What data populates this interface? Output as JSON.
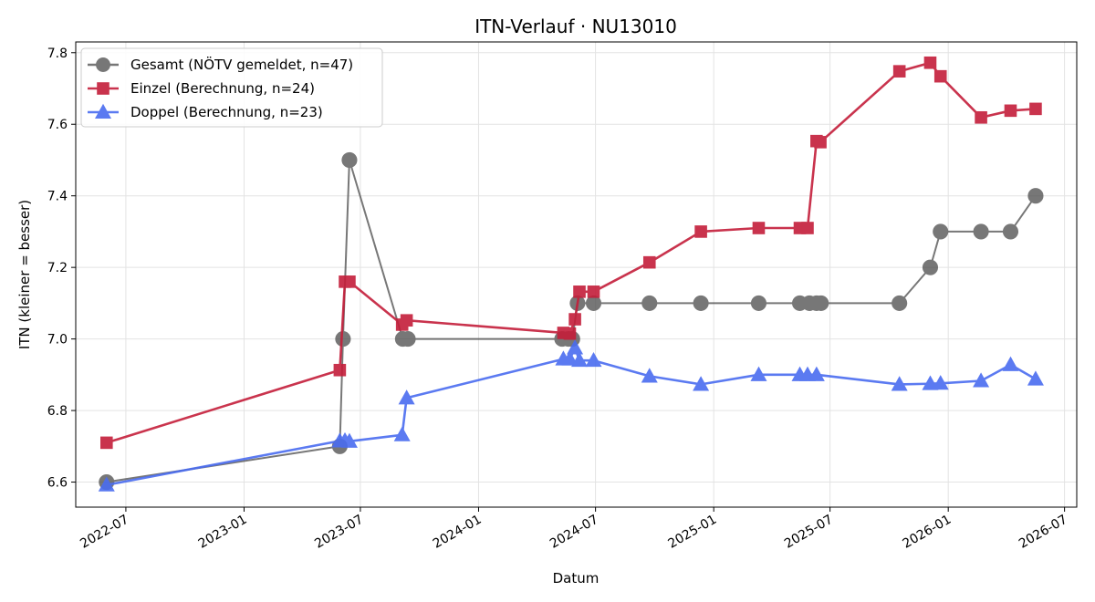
{
  "chart_data": {
    "type": "line",
    "title": "ITN-Verlauf · NU13010",
    "xlabel": "Datum",
    "ylabel": "ITN  (kleiner = besser)",
    "x_type": "date",
    "xlim": [
      "2022-04-14",
      "2026-07-20"
    ],
    "ylim": [
      6.53,
      7.83
    ],
    "x_ticks": [
      "2022-07-01",
      "2023-01-01",
      "2023-07-01",
      "2024-01-01",
      "2024-07-01",
      "2025-01-01",
      "2025-07-01",
      "2026-01-01",
      "2026-07-01"
    ],
    "x_tick_labels": [
      "2022-07",
      "2023-01",
      "2023-07",
      "2024-01",
      "2024-07",
      "2025-01",
      "2025-07",
      "2026-01",
      "2026-07"
    ],
    "y_ticks": [
      6.6,
      6.8,
      7.0,
      7.2,
      7.4,
      7.6,
      7.8
    ],
    "y_tick_labels": [
      "6.6",
      "6.8",
      "7.0",
      "7.2",
      "7.4",
      "7.6",
      "7.8"
    ],
    "grid": true,
    "legend_position": "top-left",
    "series": [
      {
        "name": "Gesamt (NÖTV gemeldet, n=47)",
        "color": "#444444",
        "marker": "circle",
        "points": [
          [
            "2022-06-01",
            6.6
          ],
          [
            "2023-05-30",
            6.7
          ],
          [
            "2023-06-04",
            7.0
          ],
          [
            "2023-06-14",
            7.5
          ],
          [
            "2023-09-05",
            7.0
          ],
          [
            "2023-09-13",
            7.0
          ],
          [
            "2024-05-10",
            7.0
          ],
          [
            "2024-05-20",
            7.0
          ],
          [
            "2024-05-26",
            7.0
          ],
          [
            "2024-06-03",
            7.1
          ],
          [
            "2024-06-28",
            7.1
          ],
          [
            "2024-09-23",
            7.1
          ],
          [
            "2024-12-12",
            7.1
          ],
          [
            "2025-03-12",
            7.1
          ],
          [
            "2025-05-15",
            7.1
          ],
          [
            "2025-05-30",
            7.1
          ],
          [
            "2025-06-10",
            7.1
          ],
          [
            "2025-06-17",
            7.1
          ],
          [
            "2025-10-17",
            7.1
          ],
          [
            "2025-12-04",
            7.2
          ],
          [
            "2025-12-20",
            7.3
          ],
          [
            "2026-02-21",
            7.3
          ],
          [
            "2026-04-08",
            7.3
          ],
          [
            "2026-05-17",
            7.4
          ]
        ]
      },
      {
        "name": "Einzel (Berechnung, n=24)",
        "color": "#c41e3a",
        "marker": "square",
        "points": [
          [
            "2022-06-01",
            6.71
          ],
          [
            "2023-05-30",
            6.913
          ],
          [
            "2023-06-07",
            7.16
          ],
          [
            "2023-06-14",
            7.16
          ],
          [
            "2023-09-04",
            7.04
          ],
          [
            "2023-09-11",
            7.052
          ],
          [
            "2024-05-12",
            7.017
          ],
          [
            "2024-05-22",
            7.015
          ],
          [
            "2024-05-30",
            7.055
          ],
          [
            "2024-06-06",
            7.132
          ],
          [
            "2024-06-28",
            7.132
          ],
          [
            "2024-09-23",
            7.214
          ],
          [
            "2024-12-12",
            7.3
          ],
          [
            "2025-03-12",
            7.31
          ],
          [
            "2025-05-15",
            7.31
          ],
          [
            "2025-05-27",
            7.31
          ],
          [
            "2025-06-10",
            7.553
          ],
          [
            "2025-06-16",
            7.55
          ],
          [
            "2025-10-17",
            7.748
          ],
          [
            "2025-12-04",
            7.772
          ],
          [
            "2025-12-20",
            7.734
          ],
          [
            "2026-02-21",
            7.619
          ],
          [
            "2026-04-08",
            7.638
          ],
          [
            "2026-05-17",
            7.643
          ]
        ]
      },
      {
        "name": "Doppel (Berechnung, n=23)",
        "color": "#4a6cf0",
        "marker": "triangle",
        "points": [
          [
            "2022-06-01",
            6.592
          ],
          [
            "2023-05-30",
            6.715
          ],
          [
            "2023-06-07",
            6.716
          ],
          [
            "2023-06-14",
            6.714
          ],
          [
            "2023-09-04",
            6.732
          ],
          [
            "2023-09-11",
            6.835
          ],
          [
            "2024-05-12",
            6.944
          ],
          [
            "2024-05-22",
            6.944
          ],
          [
            "2024-05-30",
            6.975
          ],
          [
            "2024-06-06",
            6.94
          ],
          [
            "2024-06-28",
            6.94
          ],
          [
            "2024-09-23",
            6.896
          ],
          [
            "2024-12-12",
            6.873
          ],
          [
            "2025-03-12",
            6.9
          ],
          [
            "2025-05-15",
            6.9
          ],
          [
            "2025-05-27",
            6.9
          ],
          [
            "2025-06-10",
            6.9
          ],
          [
            "2025-10-17",
            6.873
          ],
          [
            "2025-12-04",
            6.875
          ],
          [
            "2025-12-20",
            6.876
          ],
          [
            "2026-02-21",
            6.883
          ],
          [
            "2026-04-08",
            6.928
          ],
          [
            "2026-05-17",
            6.888
          ]
        ]
      }
    ]
  }
}
